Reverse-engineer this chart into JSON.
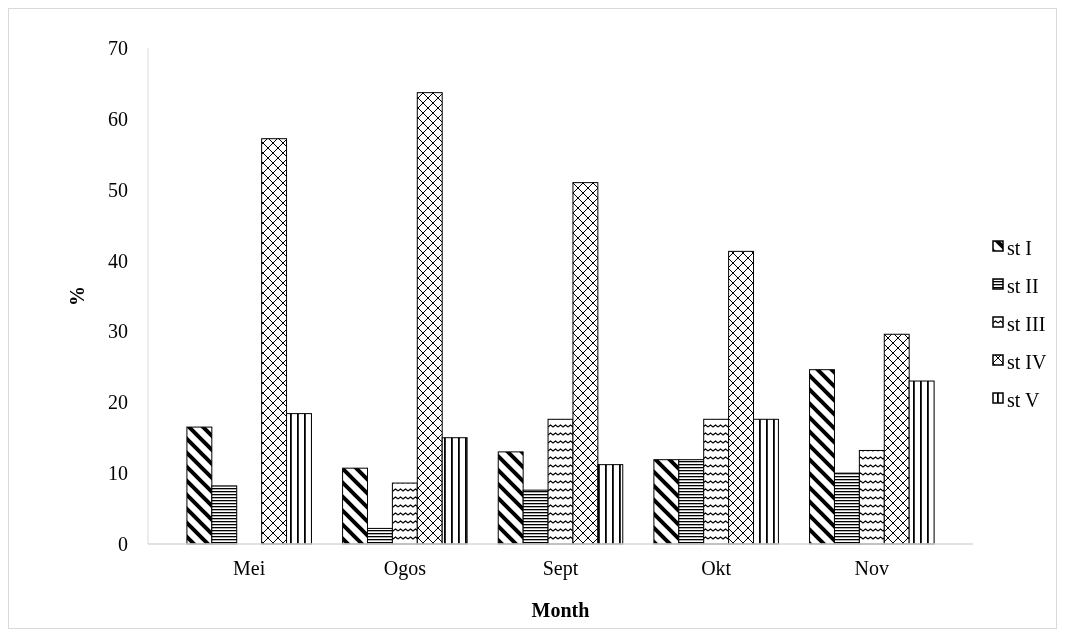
{
  "chart_data": {
    "type": "bar",
    "xlabel": "Month",
    "ylabel": "%",
    "categories": [
      "Mei",
      "Ogos",
      "Sept",
      "Okt",
      "Nov"
    ],
    "ylim": [
      0,
      70
    ],
    "yticks": [
      0,
      10,
      20,
      30,
      40,
      50,
      60,
      70
    ],
    "grid": false,
    "legend": "right",
    "series": [
      {
        "name": "st I",
        "color": "#000000",
        "values": [
          16.5,
          10.7,
          13.0,
          11.9,
          24.6
        ]
      },
      {
        "name": "st II",
        "color": "#000000",
        "values": [
          8.2,
          2.2,
          7.6,
          11.9,
          10.0
        ]
      },
      {
        "name": "st III",
        "color": "#000000",
        "values": [
          0,
          8.6,
          17.6,
          17.6,
          13.2
        ]
      },
      {
        "name": "st IV",
        "color": "#000000",
        "values": [
          57.2,
          63.7,
          51.0,
          41.3,
          29.6
        ]
      },
      {
        "name": "st V",
        "color": "#000000",
        "values": [
          18.4,
          15.0,
          11.2,
          17.6,
          23.0
        ]
      }
    ]
  }
}
